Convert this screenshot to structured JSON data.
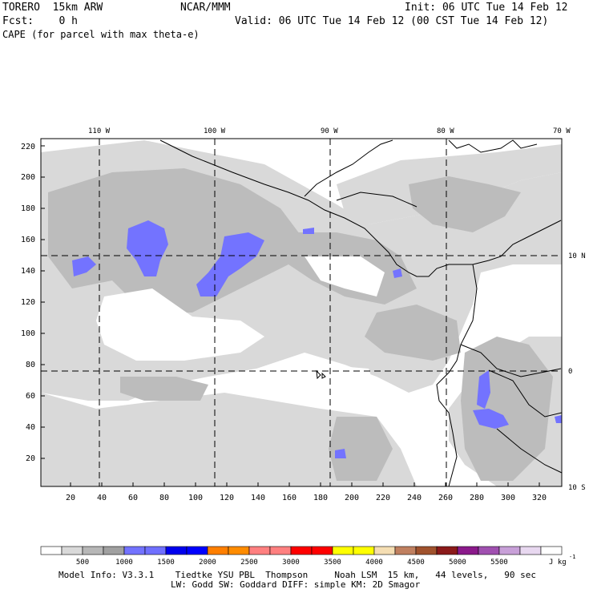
{
  "header": {
    "model": "TORERO  15km ARW",
    "center": "NCAR/MMM",
    "init": "Init: 06 UTC Tue 14 Feb 12",
    "fcst": "Fcst:    0 h",
    "valid": "Valid: 06 UTC Tue 14 Feb 12 (00 CST Tue 14 Feb 12)",
    "field": "CAPE (for parcel with max theta-e)"
  },
  "map": {
    "lon_labels": [
      "110 W",
      "100 W",
      "90 W",
      "80 W",
      "70 W"
    ],
    "lat_labels": [
      "10 N",
      "0",
      "10 S"
    ],
    "y_ticks": [
      "220",
      "200",
      "180",
      "160",
      "140",
      "120",
      "100",
      "80",
      "60",
      "40",
      "20"
    ],
    "x_ticks": [
      "20",
      "40",
      "60",
      "80",
      "100",
      "120",
      "140",
      "160",
      "180",
      "200",
      "220",
      "240",
      "260",
      "280",
      "300",
      "320"
    ]
  },
  "colorbar": {
    "labels": [
      "500",
      "1000",
      "1500",
      "2000",
      "2500",
      "3000",
      "3500",
      "4000",
      "4500",
      "5000",
      "5500"
    ],
    "unit": "J kg",
    "unit_exp": "-1",
    "colors": [
      "#ffffff",
      "#d9d9d9",
      "#b7b7b7",
      "#a0a0a0",
      "#7373ff",
      "#7070ff",
      "#0000ee",
      "#0000ff",
      "#ff7f00",
      "#ff8c00",
      "#ff8080",
      "#ff8080",
      "#ff0000",
      "#ff0000",
      "#ffff00",
      "#ffff00",
      "#f5deb3",
      "#c08060",
      "#a0522d",
      "#8b1a1a",
      "#8b1a8b",
      "#a050b0",
      "#c8a0d8",
      "#e8d8f0",
      "#ffffff"
    ]
  },
  "footer": {
    "line1": "Model Info: V3.3.1    Tiedtke YSU PBL  Thompson     Noah LSM  15 km,   44 levels,   90 sec",
    "line2": "LW: Godd SW: Goddard DIFF: simple KM: 2D Smagor"
  }
}
